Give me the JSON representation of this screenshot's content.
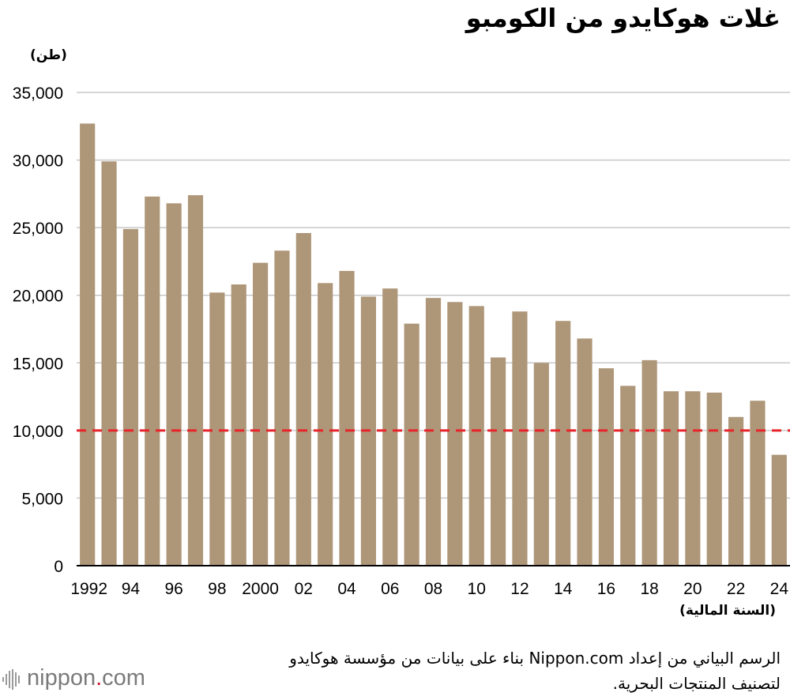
{
  "header": {
    "title": "غلات هوكايدو من الكومبو",
    "unit": "(طن)"
  },
  "footer": {
    "source": "الرسم البياني من إعداد Nippon.com بناء على بيانات من مؤسسة هوكايدو لتصنيف المنتجات البحرية.",
    "logo_main": "nippon",
    "logo_dot": ".",
    "logo_tld": "com"
  },
  "colors": {
    "bar": "#ae9678",
    "reference_line": "#e8232a",
    "grid": "#c8c8c8"
  },
  "chart_data": {
    "type": "bar",
    "title": "غلات هوكايدو من الكومبو",
    "ylabel": "(طن)",
    "xlabel": "(السنة المالية)",
    "ylim": [
      0,
      35000
    ],
    "y_ticks": [
      0,
      5000,
      10000,
      15000,
      20000,
      25000,
      30000,
      35000
    ],
    "y_tick_labels": [
      "0",
      "5,000",
      "10,000",
      "15,000",
      "20,000",
      "25,000",
      "30,000",
      "35,000"
    ],
    "grid": true,
    "categories": [
      "1992",
      "1993",
      "1994",
      "1995",
      "1996",
      "1997",
      "1998",
      "1999",
      "2000",
      "2001",
      "2002",
      "2003",
      "2004",
      "2005",
      "2006",
      "2007",
      "2008",
      "2009",
      "2010",
      "2011",
      "2012",
      "2013",
      "2014",
      "2015",
      "2016",
      "2017",
      "2018",
      "2019",
      "2020",
      "2021",
      "2022",
      "2023",
      "2024"
    ],
    "x_tick_labels": [
      "1992",
      "",
      "94",
      "",
      "96",
      "",
      "98",
      "",
      "2000",
      "",
      "02",
      "",
      "04",
      "",
      "06",
      "",
      "08",
      "",
      "10",
      "",
      "12",
      "",
      "14",
      "",
      "16",
      "",
      "18",
      "",
      "20",
      "",
      "22",
      "",
      "24"
    ],
    "values": [
      32700,
      29900,
      24900,
      27300,
      26800,
      27400,
      20200,
      20800,
      22400,
      23300,
      24600,
      20900,
      21800,
      19900,
      20500,
      17900,
      19800,
      19500,
      19200,
      15400,
      18800,
      15000,
      18100,
      16800,
      14600,
      13300,
      15200,
      12900,
      12900,
      12800,
      11000,
      12200,
      8200
    ],
    "reference_line": {
      "value": 10000,
      "style": "dashed"
    }
  }
}
